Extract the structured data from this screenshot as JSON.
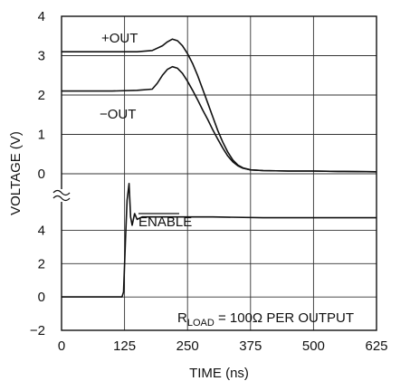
{
  "chart_data": {
    "type": "line",
    "title": "",
    "xlabel": "TIME (ns)",
    "ylabel": "VOLTAGE (V)",
    "xlim": [
      0,
      625
    ],
    "x_ticks": [
      "0",
      "125",
      "250",
      "375",
      "500",
      "625"
    ],
    "upper_panel": {
      "ylim": [
        0,
        4
      ],
      "y_ticks": [
        "0",
        "1",
        "2",
        "3",
        "4"
      ],
      "series": [
        {
          "name": "+OUT",
          "x": [
            0,
            50,
            100,
            150,
            180,
            200,
            210,
            220,
            230,
            240,
            250,
            260,
            270,
            280,
            290,
            300,
            310,
            320,
            330,
            340,
            350,
            360,
            375,
            400,
            450,
            500,
            550,
            625
          ],
          "values": [
            3.1,
            3.1,
            3.1,
            3.1,
            3.13,
            3.25,
            3.35,
            3.42,
            3.38,
            3.25,
            3.05,
            2.8,
            2.5,
            2.15,
            1.8,
            1.45,
            1.1,
            0.8,
            0.55,
            0.35,
            0.22,
            0.15,
            0.1,
            0.08,
            0.07,
            0.07,
            0.06,
            0.05
          ]
        },
        {
          "name": "−OUT",
          "x": [
            0,
            50,
            100,
            150,
            180,
            190,
            200,
            210,
            220,
            230,
            240,
            250,
            260,
            270,
            280,
            290,
            300,
            310,
            320,
            330,
            340,
            350,
            360,
            375,
            400,
            450,
            500,
            550,
            625
          ],
          "values": [
            2.1,
            2.1,
            2.1,
            2.12,
            2.15,
            2.3,
            2.5,
            2.65,
            2.72,
            2.68,
            2.55,
            2.35,
            2.12,
            1.88,
            1.62,
            1.38,
            1.12,
            0.88,
            0.65,
            0.45,
            0.3,
            0.2,
            0.14,
            0.1,
            0.08,
            0.07,
            0.07,
            0.06,
            0.05
          ]
        }
      ]
    },
    "lower_panel": {
      "ylim": [
        -2,
        5
      ],
      "y_ticks": [
        "−2",
        "0",
        "2",
        "4"
      ],
      "series": [
        {
          "name": "ENABLE",
          "x": [
            0,
            50,
            100,
            120,
            123,
            127,
            130,
            134,
            137,
            140,
            145,
            150,
            160,
            200,
            250,
            300,
            400,
            500,
            625
          ],
          "values": [
            0,
            0,
            0,
            0,
            0.3,
            3.5,
            5.8,
            6.8,
            4.8,
            4.3,
            5.0,
            4.65,
            4.8,
            4.8,
            4.8,
            4.8,
            4.75,
            4.75,
            4.75
          ]
        }
      ]
    },
    "labels": {
      "plus_out": "+OUT",
      "minus_out": "−OUT",
      "enable": "ENABLE",
      "rload_prefix": "R",
      "rload_sub": "LOAD",
      "rload_suffix": " = 100Ω PER OUTPUT"
    },
    "grid": true,
    "axis_break": true
  }
}
